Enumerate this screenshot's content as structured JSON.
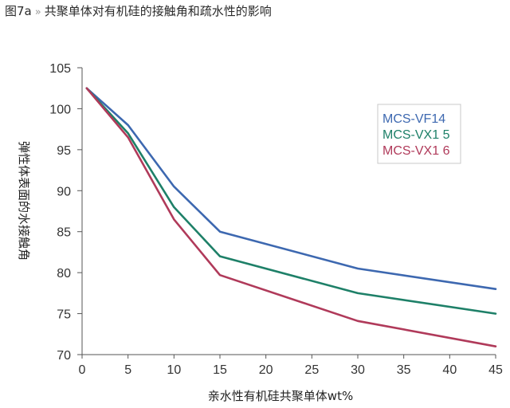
{
  "caption": {
    "label": "图7a",
    "separator": "»",
    "text": "共聚单体对有机硅的接触角和疏水性的影响"
  },
  "chart_data": {
    "type": "line",
    "title": "共聚单体对有机硅的接触角和疏水性的影响",
    "xlabel": "亲水性有机硅共聚单体wt%",
    "ylabel": "弹性体表面的水接触角",
    "xlim": [
      0,
      45
    ],
    "ylim": [
      70,
      105
    ],
    "xticks": [
      "0",
      "5",
      "10",
      "15",
      "20",
      "25",
      "30",
      "35",
      "40",
      "45"
    ],
    "yticks": [
      "70",
      "75",
      "80",
      "85",
      "90",
      "95",
      "100",
      "105"
    ],
    "grid": false,
    "legend_position": "top-right",
    "series": [
      {
        "name": "MCS-VF14",
        "color": "#3d68b0",
        "x": [
          0.5,
          5,
          10,
          15,
          30,
          45
        ],
        "y": [
          102.5,
          98.0,
          90.5,
          85.0,
          80.5,
          78.0
        ]
      },
      {
        "name": "MCS-VX1 5",
        "color": "#1e8068",
        "x": [
          0.5,
          5,
          10,
          15,
          30,
          45
        ],
        "y": [
          102.5,
          97.0,
          88.0,
          82.0,
          77.5,
          75.0
        ]
      },
      {
        "name": "MCS-VX1 6",
        "color": "#b03a5a",
        "x": [
          0.5,
          5,
          10,
          15,
          30,
          45
        ],
        "y": [
          102.5,
          96.5,
          86.5,
          79.7,
          74.1,
          71.0
        ]
      }
    ]
  }
}
